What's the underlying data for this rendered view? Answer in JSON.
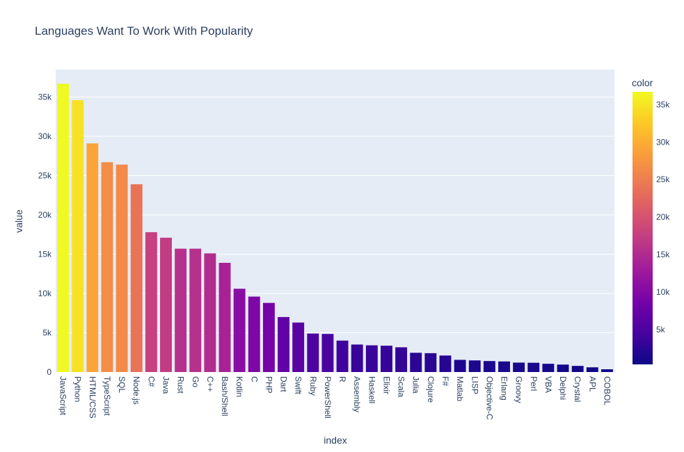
{
  "chart_data": {
    "type": "bar",
    "title": "Languages Want To Work With Popularity",
    "xlabel": "index",
    "ylabel": "value",
    "ylim": [
      0,
      38500
    ],
    "yticks": [
      0,
      5000,
      10000,
      15000,
      20000,
      25000,
      30000,
      35000
    ],
    "ytick_labels": [
      "0",
      "5k",
      "10k",
      "15k",
      "20k",
      "25k",
      "30k",
      "35k"
    ],
    "grid": true,
    "categories": [
      "JavaScript",
      "Python",
      "HTML/CSS",
      "TypeScript",
      "SQL",
      "Node.js",
      "C#",
      "Java",
      "Rust",
      "Go",
      "C++",
      "Bash/Shell",
      "Kotlin",
      "C",
      "PHP",
      "Dart",
      "Swift",
      "Ruby",
      "PowerShell",
      "R",
      "Assembly",
      "Haskell",
      "Elixir",
      "Scala",
      "Julia",
      "Clojure",
      "F#",
      "Matlab",
      "LISP",
      "Objective-C",
      "Erlang",
      "Groovy",
      "Perl",
      "VBA",
      "Delphi",
      "Crystal",
      "APL",
      "COBOL"
    ],
    "values": [
      36700,
      34600,
      29100,
      26700,
      26400,
      23900,
      17800,
      17100,
      15700,
      15700,
      15100,
      13900,
      10600,
      9600,
      8800,
      7000,
      6300,
      4900,
      4850,
      4000,
      3500,
      3400,
      3350,
      3150,
      2450,
      2400,
      2100,
      1550,
      1480,
      1400,
      1350,
      1200,
      1180,
      1050,
      950,
      780,
      600,
      350
    ],
    "colorbar": {
      "title": "color",
      "range": [
        350,
        36700
      ],
      "ticks": [
        5000,
        10000,
        15000,
        20000,
        25000,
        30000,
        35000
      ],
      "tick_labels": [
        "5k",
        "10k",
        "15k",
        "20k",
        "25k",
        "30k",
        "35k"
      ],
      "colorscale": [
        "#0d0887",
        "#46039f",
        "#7201a8",
        "#9c179e",
        "#bd3786",
        "#d8576b",
        "#ed7953",
        "#fb9f3a",
        "#fdca26",
        "#f0f921"
      ]
    },
    "plot_background": "#e5ecf6",
    "text_color": "#2a3f5f"
  }
}
